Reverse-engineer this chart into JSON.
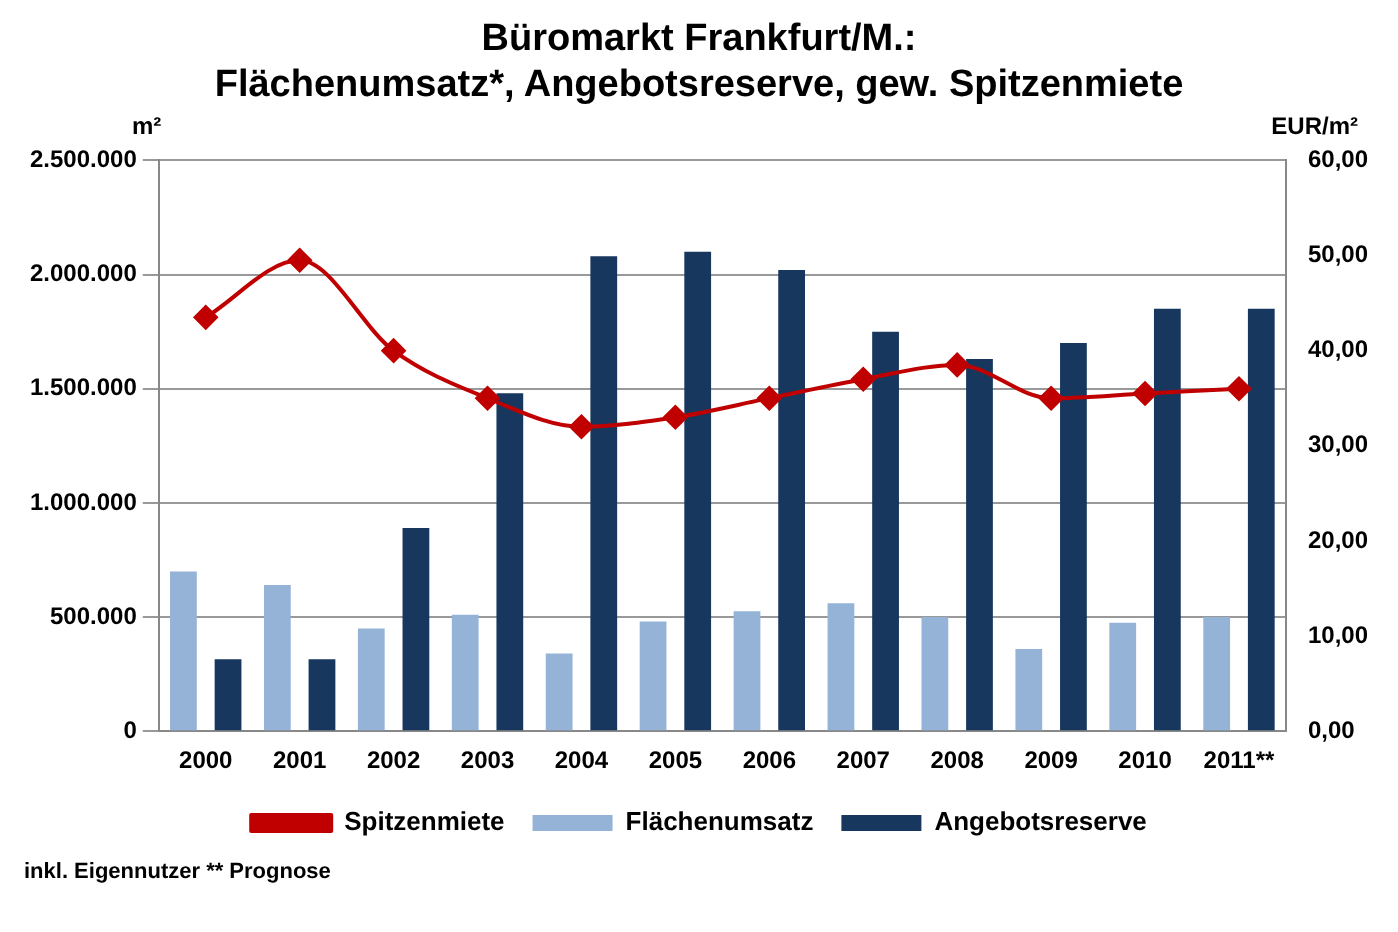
{
  "chart_data": {
    "type": "bar",
    "title": "Büromarkt Frankfurt/M.:\nFlächenumsatz*, Angebotsreserve, gew. Spitzenmiete",
    "categories": [
      "2000",
      "2001",
      "2002",
      "2003",
      "2004",
      "2005",
      "2006",
      "2007",
      "2008",
      "2009",
      "2010",
      "2011**"
    ],
    "series": [
      {
        "name": "Flächenumsatz",
        "color": "#95b3d7",
        "values": [
          700000,
          640000,
          450000,
          510000,
          340000,
          480000,
          525000,
          560000,
          500000,
          360000,
          475000,
          500000
        ]
      },
      {
        "name": "Angebotsreserve",
        "color": "#17375e",
        "values": [
          315000,
          315000,
          890000,
          1480000,
          2080000,
          2100000,
          2020000,
          1750000,
          1630000,
          1700000,
          1850000,
          1850000
        ]
      },
      {
        "name": "Spitzenmiete",
        "type": "line",
        "axis": "y2",
        "color": "#c00000",
        "values": [
          43.5,
          49.5,
          40,
          35,
          32,
          33,
          35,
          37,
          38.5,
          35,
          35.5,
          36
        ]
      }
    ],
    "ylabel": "m²",
    "y2label": "EUR/m²",
    "ylim": [
      0,
      2500000
    ],
    "yticks": [
      0,
      {
        "value": 500000,
        "label": "500.000"
      },
      {
        "value": 1000000,
        "label": "1.000.000"
      },
      {
        "value": 1500000,
        "label": "1.500.000"
      },
      {
        "value": 2000000,
        "label": "2.000.000"
      },
      {
        "value": 2500000,
        "label": "2.500.000"
      }
    ],
    "y2lim": [
      0,
      60
    ],
    "y2ticks": [
      {
        "value": 0,
        "label": "0,00"
      },
      {
        "value": 10,
        "label": "10,00"
      },
      {
        "value": 20,
        "label": "20,00"
      },
      {
        "value": 30,
        "label": "30,00"
      },
      {
        "value": 40,
        "label": "40,00"
      },
      {
        "value": 50,
        "label": "50,00"
      },
      {
        "value": 60,
        "label": "60,00"
      }
    ],
    "grid": "y",
    "legend": "bottom",
    "marker": "diamond",
    "line_style": "solid",
    "annotations": [
      "inkl. Eigennutzer   ** Prognose"
    ]
  }
}
